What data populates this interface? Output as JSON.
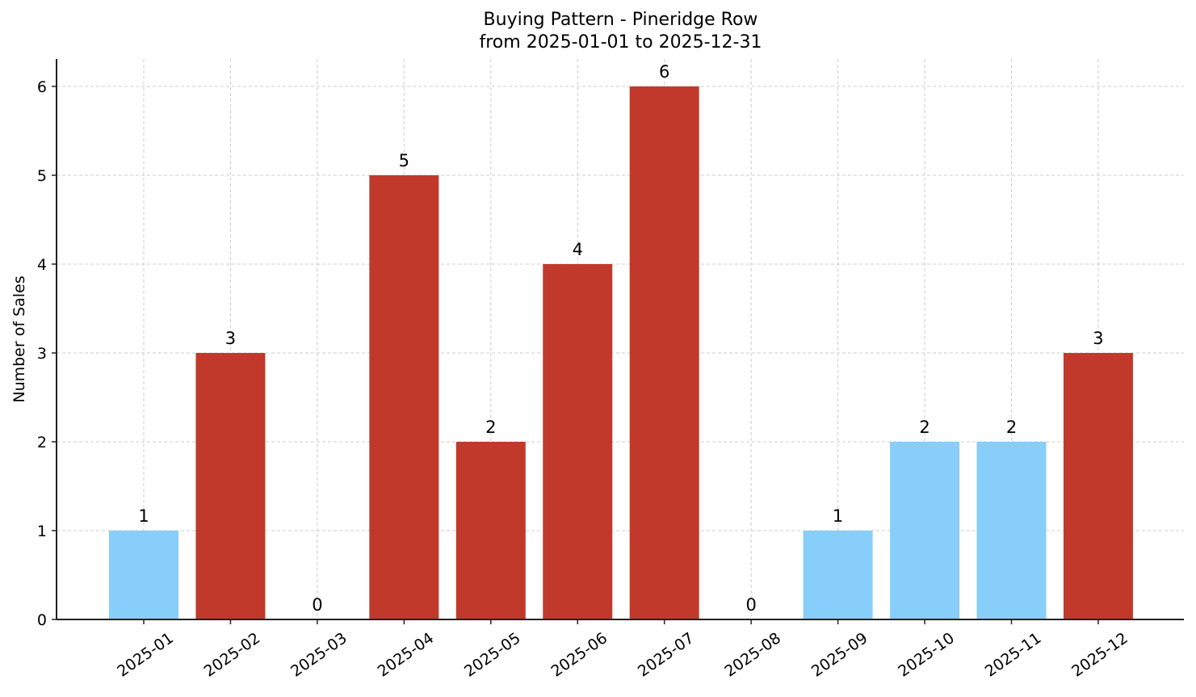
{
  "chart_data": {
    "type": "bar",
    "title": "Buying Pattern - Pineridge Row",
    "subtitle": "from 2025-01-01 to 2025-12-31",
    "xlabel": "",
    "ylabel": "Number of Sales",
    "ylim": [
      0,
      6.3
    ],
    "yticks": [
      0,
      1,
      2,
      3,
      4,
      5,
      6
    ],
    "grid": true,
    "legend": null,
    "categories": [
      "2025-01",
      "2025-02",
      "2025-03",
      "2025-04",
      "2025-05",
      "2025-06",
      "2025-07",
      "2025-08",
      "2025-09",
      "2025-10",
      "2025-11",
      "2025-12"
    ],
    "values": [
      1,
      3,
      0,
      5,
      2,
      4,
      6,
      0,
      1,
      2,
      2,
      3
    ],
    "bar_colors": [
      "#87cefa",
      "#c0392b",
      "#87cefa",
      "#c0392b",
      "#c0392b",
      "#c0392b",
      "#c0392b",
      "#87cefa",
      "#87cefa",
      "#87cefa",
      "#87cefa",
      "#c0392b"
    ],
    "data_labels": [
      "1",
      "3",
      "0",
      "5",
      "2",
      "4",
      "6",
      "0",
      "1",
      "2",
      "2",
      "3"
    ]
  },
  "colors": {
    "high": "#c0392b",
    "low": "#87cefa",
    "grid": "#cccccc",
    "axis": "#222222"
  }
}
